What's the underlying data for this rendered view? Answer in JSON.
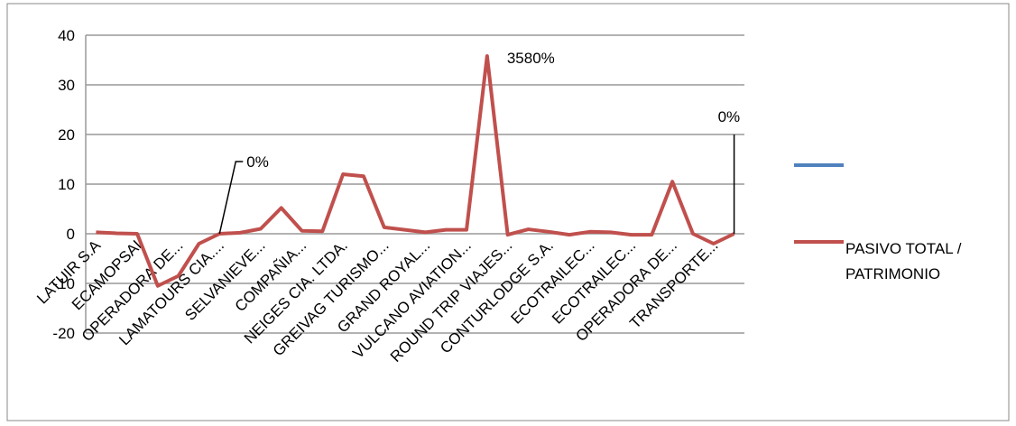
{
  "chart_data": {
    "type": "line",
    "categories": [
      "LATUIR S.A",
      null,
      "ECAMOPSAI",
      null,
      "OPERADORA DE...",
      null,
      "LAMATOURS CIA....",
      null,
      "SELVANIEVE...",
      null,
      "COMPAÑIA...",
      null,
      "NEIGES CIA. LTDA.",
      null,
      "GREIVAG TURISMO...",
      null,
      "GRAND ROYAL...",
      null,
      "VULCANO AVIATION...",
      null,
      "ROUND TRIP VIAJES...",
      null,
      "CONTURLODGE S.A.",
      null,
      "ECOTRAILEC...",
      null,
      "ECOTRAILEC...",
      null,
      "OPERADORA DE...",
      null,
      "TRANSPORTE...",
      null
    ],
    "series": [
      {
        "name": "PASIVO TOTAL / PATRIMONIO",
        "color": "#c0504d",
        "values": [
          0.3,
          0.1,
          0,
          -10.5,
          -8.5,
          -2,
          0,
          0.2,
          1,
          5.2,
          0.6,
          0.5,
          12,
          11.6,
          1.3,
          0.8,
          0.3,
          0.8,
          0.8,
          35.8,
          -0.2,
          0.9,
          0.4,
          -0.2,
          0.4,
          0.3,
          -0.2,
          -0.2,
          10.5,
          0,
          -2,
          0
        ],
        "value_labels": [
          null,
          null,
          null,
          null,
          null,
          null,
          "0%",
          null,
          null,
          null,
          null,
          null,
          null,
          null,
          null,
          null,
          null,
          null,
          null,
          "3580%",
          null,
          null,
          null,
          null,
          null,
          null,
          null,
          null,
          null,
          null,
          null,
          "0%"
        ]
      }
    ],
    "ylim": [
      -20,
      40
    ],
    "yticks": [
      -20,
      -10,
      0,
      10,
      20,
      30,
      40
    ],
    "grid": true
  }
}
